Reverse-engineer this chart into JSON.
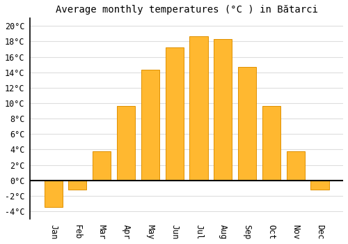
{
  "title": "Average monthly temperatures (°C ) in Bătarci",
  "months": [
    "Jan",
    "Feb",
    "Mar",
    "Apr",
    "May",
    "Jun",
    "Jul",
    "Aug",
    "Sep",
    "Oct",
    "Nov",
    "Dec"
  ],
  "values": [
    -3.5,
    -1.2,
    3.8,
    9.6,
    14.3,
    17.2,
    18.7,
    18.3,
    14.7,
    9.6,
    3.8,
    -1.2
  ],
  "bar_color": "#FFB830",
  "bar_edge_color": "#E09000",
  "background_color": "#ffffff",
  "grid_color": "#dddddd",
  "ylim": [
    -5,
    21
  ],
  "yticks": [
    -4,
    -2,
    0,
    2,
    4,
    6,
    8,
    10,
    12,
    14,
    16,
    18,
    20
  ],
  "title_fontsize": 10,
  "tick_fontsize": 8.5,
  "figsize": [
    5.0,
    3.5
  ],
  "dpi": 100
}
